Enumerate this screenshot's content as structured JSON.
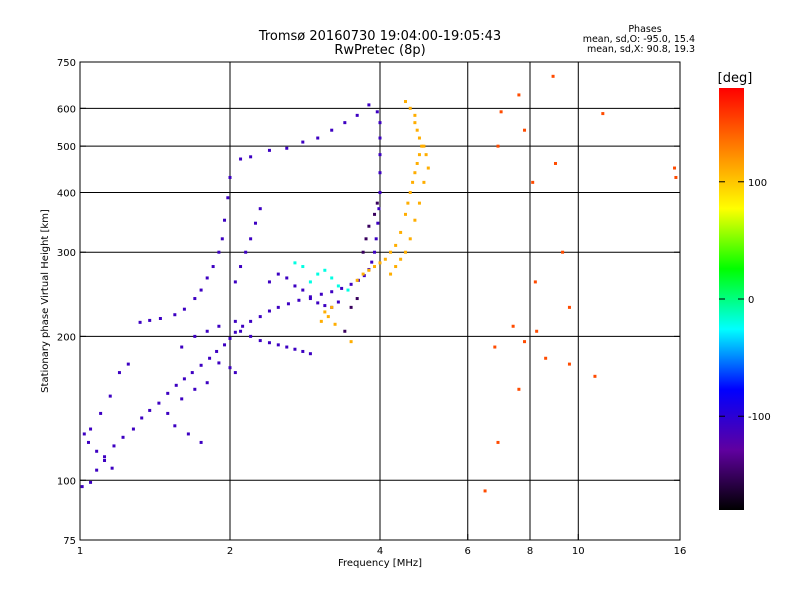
{
  "chart_data": {
    "type": "scatter",
    "title": "Tromsø 20160730 19:04:00-19:05:43",
    "subtitle": "RwPretec (8p)",
    "xlabel": "Frequency [MHz]",
    "ylabel": "Stationary phase Virtual Height [km]",
    "x_scale": "log",
    "y_scale": "log",
    "xlim": [
      1,
      16
    ],
    "ylim": [
      75,
      750
    ],
    "x_ticks": [
      1,
      2,
      4,
      6,
      8,
      10,
      16
    ],
    "x_tick_labels": [
      "1",
      "2",
      "4",
      "6",
      "8",
      "10",
      "16"
    ],
    "y_ticks": [
      75,
      100,
      200,
      300,
      400,
      500,
      600,
      750
    ],
    "y_tick_labels": [
      "75",
      "100",
      "200",
      "300",
      "400",
      "500",
      "600",
      "750"
    ],
    "grid": true,
    "stats_header": "Phases",
    "stats": [
      "mean, sd,O: -95.0, 15.4",
      "mean, sd,X: 90.8, 19.3"
    ],
    "colorbar": {
      "label": "[deg]",
      "range": [
        -180,
        180
      ],
      "tick_values": [
        100,
        0,
        -100
      ],
      "tick_labels": [
        "100",
        "0",
        "-100"
      ],
      "colors": [
        "#ff0000",
        "#ff8000",
        "#ffff00",
        "#00ff00",
        "#00ffff",
        "#0000ff",
        "#6000a0",
        "#000000"
      ]
    },
    "series": [
      {
        "values": [
          [
            1.01,
            97
          ],
          [
            1.05,
            99
          ],
          [
            1.08,
            105
          ],
          [
            1.12,
            112
          ],
          [
            1.17,
            118
          ],
          [
            1.22,
            123
          ],
          [
            1.28,
            128
          ],
          [
            1.33,
            135
          ],
          [
            1.38,
            140
          ],
          [
            1.44,
            145
          ],
          [
            1.5,
            152
          ],
          [
            1.56,
            158
          ],
          [
            1.62,
            163
          ],
          [
            1.68,
            168
          ],
          [
            1.75,
            174
          ],
          [
            1.82,
            180
          ],
          [
            1.88,
            186
          ],
          [
            1.95,
            192
          ],
          [
            2.0,
            198
          ],
          [
            2.05,
            204
          ],
          [
            2.12,
            210
          ],
          [
            2.2,
            215
          ],
          [
            2.3,
            220
          ],
          [
            2.4,
            226
          ],
          [
            2.5,
            230
          ],
          [
            2.62,
            234
          ],
          [
            2.75,
            238
          ],
          [
            2.9,
            242
          ],
          [
            3.05,
            245
          ],
          [
            3.2,
            248
          ],
          [
            3.35,
            252
          ],
          [
            3.5,
            257
          ],
          [
            3.62,
            262
          ],
          [
            3.72,
            268
          ],
          [
            3.8,
            276
          ],
          [
            3.85,
            286
          ],
          [
            3.9,
            300
          ],
          [
            3.93,
            320
          ],
          [
            3.96,
            345
          ],
          [
            3.98,
            370
          ],
          [
            4.0,
            400
          ],
          [
            4.0,
            440
          ],
          [
            4.0,
            480
          ],
          [
            4.0,
            520
          ],
          [
            4.0,
            560
          ],
          [
            3.95,
            590
          ],
          [
            3.8,
            610
          ],
          [
            3.6,
            580
          ],
          [
            3.4,
            560
          ],
          [
            3.2,
            540
          ],
          [
            3.0,
            520
          ],
          [
            2.8,
            510
          ],
          [
            2.6,
            495
          ],
          [
            2.4,
            490
          ],
          [
            2.2,
            475
          ],
          [
            2.1,
            470
          ],
          [
            2.0,
            430
          ],
          [
            1.98,
            390
          ],
          [
            1.95,
            350
          ],
          [
            1.93,
            320
          ],
          [
            1.9,
            300
          ],
          [
            1.85,
            280
          ],
          [
            1.8,
            265
          ],
          [
            1.75,
            250
          ],
          [
            1.7,
            240
          ],
          [
            1.62,
            228
          ],
          [
            1.55,
            222
          ],
          [
            1.45,
            218
          ],
          [
            1.38,
            216
          ],
          [
            1.32,
            214
          ],
          [
            1.25,
            175
          ],
          [
            1.2,
            168
          ],
          [
            1.15,
            150
          ],
          [
            1.1,
            138
          ],
          [
            1.05,
            128
          ],
          [
            1.02,
            125
          ],
          [
            1.04,
            120
          ],
          [
            1.08,
            115
          ],
          [
            1.12,
            110
          ],
          [
            1.16,
            106
          ],
          [
            1.6,
            190
          ],
          [
            1.7,
            200
          ],
          [
            1.8,
            205
          ],
          [
            1.9,
            210
          ],
          [
            2.05,
            260
          ],
          [
            2.1,
            280
          ],
          [
            2.15,
            300
          ],
          [
            2.2,
            320
          ],
          [
            2.25,
            345
          ],
          [
            2.3,
            370
          ],
          [
            2.4,
            260
          ],
          [
            2.5,
            270
          ],
          [
            2.6,
            265
          ],
          [
            2.7,
            255
          ],
          [
            2.8,
            250
          ],
          [
            2.9,
            240
          ],
          [
            3.0,
            235
          ],
          [
            3.1,
            232
          ],
          [
            3.2,
            230
          ],
          [
            3.3,
            236
          ],
          [
            2.05,
            215
          ],
          [
            2.1,
            205
          ],
          [
            2.2,
            200
          ],
          [
            2.3,
            196
          ],
          [
            2.4,
            194
          ],
          [
            2.5,
            192
          ],
          [
            2.6,
            190
          ],
          [
            2.7,
            188
          ],
          [
            2.8,
            186
          ],
          [
            2.9,
            184
          ],
          [
            1.9,
            176
          ],
          [
            2.0,
            172
          ],
          [
            2.05,
            168
          ],
          [
            1.8,
            160
          ],
          [
            1.7,
            155
          ],
          [
            1.6,
            148
          ],
          [
            1.5,
            138
          ],
          [
            1.55,
            130
          ],
          [
            1.65,
            125
          ],
          [
            1.75,
            120
          ]
        ]
      },
      {
        "values": [
          [
            3.4,
            205
          ],
          [
            3.5,
            230
          ],
          [
            3.6,
            240
          ],
          [
            3.7,
            300
          ],
          [
            3.75,
            320
          ],
          [
            3.8,
            340
          ],
          [
            3.9,
            360
          ],
          [
            3.95,
            380
          ]
        ]
      },
      {
        "values": [
          [
            2.9,
            260
          ],
          [
            3.0,
            270
          ],
          [
            3.1,
            275
          ],
          [
            3.2,
            265
          ],
          [
            3.3,
            255
          ],
          [
            3.45,
            250
          ],
          [
            2.8,
            280
          ],
          [
            2.7,
            285
          ]
        ]
      },
      {
        "values": [
          [
            3.05,
            215
          ],
          [
            3.1,
            225
          ],
          [
            3.15,
            220
          ],
          [
            3.2,
            230
          ],
          [
            3.25,
            212
          ],
          [
            3.5,
            195
          ],
          [
            3.6,
            262
          ],
          [
            3.7,
            270
          ],
          [
            3.8,
            275
          ],
          [
            3.9,
            280
          ],
          [
            4.0,
            285
          ],
          [
            4.1,
            290
          ],
          [
            4.2,
            300
          ],
          [
            4.3,
            310
          ],
          [
            4.4,
            330
          ],
          [
            4.5,
            360
          ],
          [
            4.55,
            380
          ],
          [
            4.6,
            400
          ],
          [
            4.65,
            420
          ],
          [
            4.7,
            440
          ],
          [
            4.75,
            460
          ],
          [
            4.8,
            480
          ],
          [
            4.85,
            500
          ],
          [
            4.8,
            520
          ],
          [
            4.75,
            540
          ],
          [
            4.7,
            560
          ],
          [
            4.7,
            580
          ],
          [
            4.2,
            270
          ],
          [
            4.3,
            280
          ],
          [
            4.4,
            290
          ],
          [
            4.5,
            300
          ],
          [
            4.6,
            320
          ],
          [
            4.7,
            350
          ],
          [
            4.8,
            380
          ],
          [
            4.9,
            420
          ],
          [
            5.0,
            450
          ],
          [
            4.95,
            480
          ],
          [
            4.9,
            500
          ],
          [
            4.6,
            600
          ],
          [
            4.5,
            620
          ]
        ]
      },
      {
        "values": [
          [
            6.5,
            95
          ],
          [
            6.8,
            190
          ],
          [
            6.9,
            500
          ],
          [
            7.0,
            590
          ],
          [
            7.4,
            210
          ],
          [
            7.6,
            640
          ],
          [
            7.8,
            195
          ],
          [
            7.8,
            540
          ],
          [
            8.1,
            420
          ],
          [
            8.2,
            260
          ],
          [
            8.25,
            205
          ],
          [
            8.6,
            180
          ],
          [
            8.9,
            700
          ],
          [
            9.0,
            460
          ],
          [
            9.3,
            300
          ],
          [
            9.6,
            230
          ],
          [
            9.6,
            175
          ],
          [
            10.8,
            165
          ],
          [
            11.2,
            585
          ],
          [
            15.6,
            450
          ],
          [
            15.7,
            430
          ],
          [
            7.6,
            155
          ],
          [
            6.9,
            120
          ]
        ]
      }
    ]
  }
}
